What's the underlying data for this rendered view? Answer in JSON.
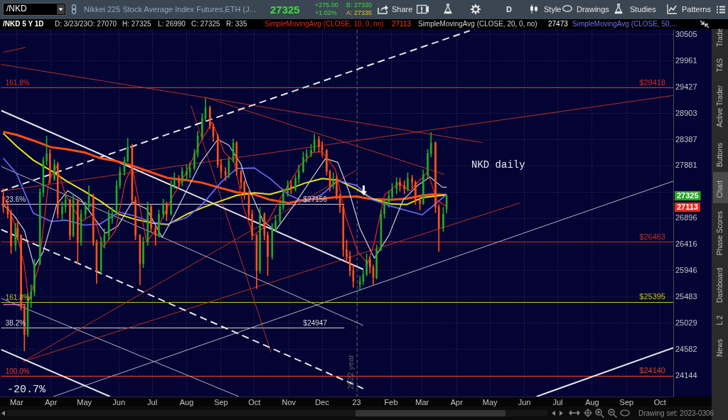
{
  "chart_data": {
    "type": "candlestick",
    "title": "Nikkei 225 Stock Average Index Futures,ETH (J...",
    "subtitle": "/NKD 5 Y 1D",
    "x": [
      "2022-02-17",
      "2022-02-21",
      "2022-02-24",
      "2022-02-28",
      "2022-03-02",
      "2022-03-05",
      "2022-03-08",
      "2022-03-11",
      "2022-03-14",
      "2022-03-17",
      "2022-03-22",
      "2022-03-25",
      "2022-03-28",
      "2022-03-31",
      "2022-04-04",
      "2022-04-07",
      "2022-04-11",
      "2022-04-14",
      "2022-04-18",
      "2022-04-21",
      "2022-04-25",
      "2022-04-28",
      "2022-05-02",
      "2022-05-05",
      "2022-05-09",
      "2022-05-12",
      "2022-05-16",
      "2022-05-19",
      "2022-05-23",
      "2022-05-26",
      "2022-05-30",
      "2022-06-02",
      "2022-06-06",
      "2022-06-09",
      "2022-06-13",
      "2022-06-16",
      "2022-06-20",
      "2022-06-23",
      "2022-06-27",
      "2022-06-30",
      "2022-07-04",
      "2022-07-07",
      "2022-07-11",
      "2022-07-14",
      "2022-07-18",
      "2022-07-21",
      "2022-07-25",
      "2022-07-28",
      "2022-08-01",
      "2022-08-04",
      "2022-08-08",
      "2022-08-11",
      "2022-08-15",
      "2022-08-18",
      "2022-08-22",
      "2022-08-25",
      "2022-08-29",
      "2022-09-01",
      "2022-09-05",
      "2022-09-08",
      "2022-09-12",
      "2022-09-15",
      "2022-09-19",
      "2022-09-22",
      "2022-09-26",
      "2022-09-29",
      "2022-10-03",
      "2022-10-06",
      "2022-10-10",
      "2022-10-13",
      "2022-10-17",
      "2022-10-20",
      "2022-10-24",
      "2022-10-27",
      "2022-10-31",
      "2022-11-03",
      "2022-11-07",
      "2022-11-10",
      "2022-11-14",
      "2022-11-17",
      "2022-11-21",
      "2022-11-24",
      "2022-11-28",
      "2022-12-01",
      "2022-12-05",
      "2022-12-08",
      "2022-12-11",
      "2022-12-14",
      "2022-12-17",
      "2022-12-20",
      "2022-12-23",
      "2022-12-26",
      "2022-12-29",
      "2023-01-04",
      "2023-01-07",
      "2023-01-10",
      "2023-01-13",
      "2023-01-16",
      "2023-01-19",
      "2023-01-23",
      "2023-01-26",
      "2023-01-30",
      "2023-02-02",
      "2023-02-06",
      "2023-02-09",
      "2023-02-13",
      "2023-02-16",
      "2023-02-20",
      "2023-02-23",
      "2023-02-27",
      "2023-03-02",
      "2023-03-06",
      "2023-03-09",
      "2023-03-13",
      "2023-03-16",
      "2023-03-20",
      "2023-03-23"
    ],
    "ohlc": [
      [
        27300,
        27450,
        27000,
        27106
      ],
      [
        27106,
        27200,
        26900,
        26974
      ],
      [
        26974,
        27050,
        26250,
        26391
      ],
      [
        26391,
        26800,
        26300,
        26713
      ],
      [
        26713,
        26850,
        26500,
        26584
      ],
      [
        26584,
        26600,
        25250,
        25322
      ],
      [
        25322,
        25350,
        24558,
        24834
      ],
      [
        24834,
        25550,
        24800,
        25446
      ],
      [
        25446,
        25700,
        25300,
        25570
      ],
      [
        25570,
        26150,
        25500,
        26072
      ],
      [
        26072,
        27450,
        26050,
        27371
      ],
      [
        27371,
        28050,
        27300,
        27976
      ],
      [
        27976,
        28456,
        27900,
        28112
      ],
      [
        28112,
        28200,
        27550,
        27638
      ],
      [
        27638,
        28000,
        27600,
        27908
      ],
      [
        27908,
        27950,
        26900,
        26974
      ],
      [
        26974,
        27200,
        26850,
        27106
      ],
      [
        27106,
        27350,
        27000,
        27237
      ],
      [
        27237,
        27250,
        26500,
        26584
      ],
      [
        26584,
        27350,
        26550,
        27237
      ],
      [
        27237,
        27250,
        26072,
        26455
      ],
      [
        26455,
        27050,
        26400,
        26974
      ],
      [
        26974,
        27200,
        26900,
        27106
      ],
      [
        27106,
        27505,
        27050,
        27304
      ],
      [
        27304,
        27350,
        26400,
        26455
      ],
      [
        26455,
        26500,
        25720,
        25946
      ],
      [
        25946,
        26550,
        25900,
        26455
      ],
      [
        26455,
        26700,
        26350,
        26584
      ],
      [
        26584,
        27050,
        26500,
        26974
      ],
      [
        26900,
        27100,
        26800,
        26974
      ],
      [
        26974,
        27600,
        26950,
        27505
      ],
      [
        27505,
        27850,
        27450,
        27773
      ],
      [
        27773,
        28050,
        27700,
        27976
      ],
      [
        27976,
        28414,
        27950,
        28250
      ],
      [
        28250,
        28300,
        27150,
        27237
      ],
      [
        27237,
        27300,
        26500,
        26584
      ],
      [
        26584,
        26600,
        25694,
        26072
      ],
      [
        26072,
        26550,
        26000,
        26455
      ],
      [
        26455,
        27200,
        26400,
        27106
      ],
      [
        27106,
        27150,
        26650,
        26713
      ],
      [
        26713,
        26750,
        26400,
        26584
      ],
      [
        26584,
        27050,
        26550,
        26974
      ],
      [
        26974,
        27250,
        26900,
        27171
      ],
      [
        27171,
        27200,
        26850,
        26974
      ],
      [
        26974,
        27600,
        26950,
        27505
      ],
      [
        27505,
        27750,
        27450,
        27638
      ],
      [
        27638,
        27700,
        27450,
        27571
      ],
      [
        27571,
        27850,
        27500,
        27773
      ],
      [
        27700,
        27900,
        27600,
        27773
      ],
      [
        27773,
        27950,
        27650,
        27840
      ],
      [
        27840,
        28200,
        27800,
        28112
      ],
      [
        28112,
        28550,
        28050,
        28456
      ],
      [
        28456,
        28900,
        28400,
        28803
      ],
      [
        28803,
        29200,
        28750,
        29014
      ],
      [
        29014,
        29050,
        28600,
        28664
      ],
      [
        28664,
        28700,
        28350,
        28456
      ],
      [
        28456,
        28500,
        27850,
        27908
      ],
      [
        27908,
        28000,
        27650,
        27773
      ],
      [
        27773,
        27850,
        27600,
        27705
      ],
      [
        27705,
        28050,
        27650,
        27976
      ],
      [
        27976,
        28400,
        27950,
        28319
      ],
      [
        28319,
        28350,
        27700,
        27773
      ],
      [
        27773,
        27800,
        27450,
        27571
      ],
      [
        27571,
        27600,
        27250,
        27371
      ],
      [
        27371,
        27400,
        26900,
        26974
      ],
      [
        26974,
        27050,
        26500,
        26584
      ],
      [
        26584,
        26600,
        25630,
        25946
      ],
      [
        25946,
        27100,
        25900,
        26974
      ],
      [
        26974,
        27000,
        26500,
        26584
      ],
      [
        26584,
        26650,
        25860,
        26200
      ],
      [
        26200,
        26800,
        26150,
        26713
      ],
      [
        26713,
        26950,
        26650,
        26844
      ],
      [
        26844,
        27200,
        26800,
        27106
      ],
      [
        27106,
        27450,
        27050,
        27371
      ],
      [
        27371,
        27600,
        27300,
        27505
      ],
      [
        27505,
        27600,
        27350,
        27438
      ],
      [
        27438,
        27700,
        27400,
        27638
      ],
      [
        27638,
        27900,
        27550,
        27773
      ],
      [
        27773,
        28150,
        27750,
        28044
      ],
      [
        28044,
        28200,
        27950,
        28112
      ],
      [
        28112,
        28300,
        28050,
        28181
      ],
      [
        28181,
        28497,
        28150,
        28387
      ],
      [
        28387,
        28450,
        28150,
        28250
      ],
      [
        28250,
        28350,
        28050,
        28181
      ],
      [
        28181,
        28200,
        27700,
        27773
      ],
      [
        27773,
        27800,
        27400,
        27505
      ],
      [
        27505,
        27750,
        27450,
        27638
      ],
      [
        27638,
        27700,
        27250,
        27304
      ],
      [
        27304,
        27350,
        27000,
        27106
      ],
      [
        27106,
        27150,
        26200,
        26327
      ],
      [
        26327,
        26500,
        26100,
        26200
      ],
      [
        26200,
        26300,
        25850,
        25946
      ],
      [
        25946,
        26050,
        25650,
        25756
      ],
      [
        25700,
        25850,
        25600,
        25756
      ],
      [
        25756,
        25950,
        25700,
        25882
      ],
      [
        25882,
        26250,
        25850,
        26136
      ],
      [
        26136,
        26200,
        25900,
        26009
      ],
      [
        26009,
        26050,
        25700,
        25819
      ],
      [
        25819,
        26400,
        25800,
        26327
      ],
      [
        26327,
        27050,
        26300,
        26974
      ],
      [
        26974,
        27250,
        26900,
        27171
      ],
      [
        27171,
        27400,
        27100,
        27304
      ],
      [
        27304,
        27550,
        27250,
        27438
      ],
      [
        27438,
        27650,
        27350,
        27571
      ],
      [
        27571,
        27650,
        27400,
        27505
      ],
      [
        27505,
        27600,
        27350,
        27438
      ],
      [
        27438,
        27750,
        27400,
        27638
      ],
      [
        27638,
        27700,
        27450,
        27571
      ],
      [
        27571,
        27600,
        27150,
        27237
      ],
      [
        27237,
        27300,
        27050,
        27171
      ],
      [
        27171,
        27800,
        27150,
        27705
      ],
      [
        27705,
        28200,
        27650,
        28112
      ],
      [
        28112,
        28527,
        28050,
        28319
      ],
      [
        28319,
        28350,
        27000,
        27106
      ],
      [
        27106,
        27150,
        26290,
        26713
      ],
      [
        26713,
        27100,
        26650,
        26974
      ],
      [
        27070,
        27325,
        26990,
        27325
      ]
    ],
    "colors": [
      "#ff5316",
      "#ff5316",
      "#ff5316",
      "#26a626",
      "#ff5316",
      "#ff5316",
      "#ff5316",
      "#26a626",
      "#26a626",
      "#26a626",
      "#26a626",
      "#26a626",
      "#26a626",
      "#ff5316",
      "#26a626",
      "#ff5316",
      "#26a626",
      "#26a626",
      "#ff5316",
      "#26a626",
      "#ff5316",
      "#26a626",
      "#26a626",
      "#26a626",
      "#ff5316",
      "#ff5316",
      "#26a626",
      "#26a626",
      "#26a626",
      "#26a626",
      "#26a626",
      "#26a626",
      "#26a626",
      "#26a626",
      "#ff5316",
      "#ff5316",
      "#ff5316",
      "#26a626",
      "#26a626",
      "#ff5316",
      "#ff5316",
      "#26a626",
      "#26a626",
      "#ff5316",
      "#26a626",
      "#26a626",
      "#ff5316",
      "#26a626",
      "#26a626",
      "#26a626",
      "#26a626",
      "#26a626",
      "#26a626",
      "#26a626",
      "#ff5316",
      "#ff5316",
      "#ff5316",
      "#ff5316",
      "#ff5316",
      "#26a626",
      "#26a626",
      "#ff5316",
      "#ff5316",
      "#ff5316",
      "#ff5316",
      "#ff5316",
      "#ff5316",
      "#26a626",
      "#ff5316",
      "#ff5316",
      "#26a626",
      "#26a626",
      "#26a626",
      "#26a626",
      "#26a626",
      "#ff5316",
      "#26a626",
      "#26a626",
      "#26a626",
      "#26a626",
      "#26a626",
      "#26a626",
      "#ff5316",
      "#ff5316",
      "#ff5316",
      "#ff5316",
      "#26a626",
      "#ff5316",
      "#ff5316",
      "#ff5316",
      "#ff5316",
      "#ff5316",
      "#ff5316",
      "#26a626",
      "#26a626",
      "#26a626",
      "#ff5316",
      "#ff5316",
      "#26a626",
      "#26a626",
      "#26a626",
      "#26a626",
      "#26a626",
      "#26a626",
      "#ff5316",
      "#ff5316",
      "#26a626",
      "#ff5316",
      "#ff5316",
      "#ff5316",
      "#26a626",
      "#26a626",
      "#26a626",
      "#ff5316",
      "#ff5316",
      "#26a626",
      "#26a626"
    ],
    "series": [
      {
        "type": "line",
        "name": "SimpleMovingAvg (CLOSE, 10, 0, no)",
        "color": "#e8281a",
        "x": [
          "2022-02-17",
          "2022-02-27",
          "2022-03-08",
          "2022-03-12",
          "2022-03-21",
          "2022-03-30",
          "2022-04-06",
          "2022-04-14",
          "2022-04-28",
          "2022-05-09",
          "2022-05-18",
          "2022-05-29",
          "2022-06-07",
          "2022-06-13",
          "2022-06-22",
          "2022-06-26",
          "2022-07-08",
          "2022-07-18",
          "2022-08-01",
          "2022-08-14",
          "2022-08-24",
          "2022-09-04",
          "2022-09-13",
          "2022-09-21",
          "2022-09-30",
          "2022-10-11",
          "2022-10-26",
          "2022-11-12",
          "2022-11-23",
          "2022-12-01",
          "2022-12-13",
          "2022-12-22",
          "2023-01-02",
          "2023-01-11",
          "2023-01-17",
          "2023-01-26",
          "2023-02-08",
          "2023-02-18",
          "2023-03-06",
          "2023-03-14",
          "2023-03-23"
        ],
        "values": [
          27330,
          26800,
          26030,
          25410,
          26030,
          27600,
          27870,
          27330,
          26840,
          26970,
          26370,
          26670,
          27600,
          27870,
          26880,
          26460,
          26800,
          27240,
          27770,
          28360,
          28730,
          28140,
          27950,
          27110,
          26580,
          26750,
          27330,
          27910,
          28140,
          28150,
          27810,
          26940,
          26290,
          26070,
          26460,
          27330,
          27550,
          27410,
          27770,
          27240,
          27113
        ]
      },
      {
        "type": "line",
        "name": "SimpleMovingAvg (CLOSE, 20, 0, no)",
        "color": "#d2d2d2",
        "x": [
          "2022-02-17",
          "2022-02-27",
          "2022-03-08",
          "2022-03-17",
          "2022-03-25",
          "2022-04-06",
          "2022-04-16",
          "2022-04-28",
          "2022-05-13",
          "2022-05-20",
          "2022-05-31",
          "2022-06-13",
          "2022-06-26",
          "2022-07-10",
          "2022-07-18",
          "2022-08-01",
          "2022-08-14",
          "2022-08-29",
          "2022-09-08",
          "2022-09-19",
          "2022-09-24",
          "2022-10-09",
          "2022-10-20",
          "2022-11-06",
          "2022-11-23",
          "2022-12-04",
          "2022-12-15",
          "2022-12-25",
          "2023-01-04",
          "2023-01-13",
          "2023-01-17",
          "2023-01-30",
          "2023-02-12",
          "2023-02-25",
          "2023-03-08",
          "2023-03-19",
          "2023-03-23"
        ],
        "values": [
          27150,
          26940,
          26670,
          26010,
          26290,
          27150,
          27410,
          27240,
          26810,
          26620,
          26750,
          27200,
          27070,
          26550,
          26840,
          27410,
          27950,
          28390,
          28280,
          27910,
          27550,
          26840,
          26670,
          27150,
          27680,
          28020,
          27950,
          27410,
          26710,
          26330,
          26170,
          26580,
          27240,
          27510,
          27670,
          27480,
          27473
        ]
      },
      {
        "type": "line",
        "name": "SimpleMovingAvg (CLOSE, 50,...",
        "color": "#6e6efc",
        "x": [
          "2022-02-17",
          "2022-03-01",
          "2022-03-16",
          "2022-04-01",
          "2022-04-15",
          "2022-05-01",
          "2022-05-15",
          "2022-06-01",
          "2022-06-15",
          "2022-07-01",
          "2022-07-15",
          "2022-08-01",
          "2022-08-15",
          "2022-09-01",
          "2022-09-15",
          "2022-10-01",
          "2022-10-15",
          "2022-11-01",
          "2022-11-15",
          "2022-12-01",
          "2022-12-15",
          "2023-01-01",
          "2023-01-15",
          "2023-02-01",
          "2023-02-15",
          "2023-03-01",
          "2023-03-10",
          "2023-03-23"
        ],
        "values": [
          28030,
          27730,
          26990,
          26840,
          26860,
          26770,
          26790,
          27010,
          26940,
          26820,
          26790,
          26910,
          27150,
          27570,
          27830,
          27840,
          27640,
          27330,
          27200,
          27340,
          27600,
          27510,
          27240,
          27120,
          27040,
          26960,
          27110,
          27340
        ]
      },
      {
        "type": "line",
        "color": "#e6e21e",
        "x": [
          "2022-02-17",
          "2022-03-01",
          "2022-03-16",
          "2022-04-01",
          "2022-04-15",
          "2022-05-01",
          "2022-05-15",
          "2022-06-01",
          "2022-06-15",
          "2022-07-01",
          "2022-07-15",
          "2022-08-01",
          "2022-08-15",
          "2022-09-01",
          "2022-09-15",
          "2022-10-01",
          "2022-10-15",
          "2022-11-01",
          "2022-11-15",
          "2022-12-01",
          "2022-12-15",
          "2023-01-01",
          "2023-01-15",
          "2023-02-01",
          "2023-02-15",
          "2023-03-01",
          "2023-03-10",
          "2023-03-23"
        ],
        "values": [
          28510,
          28260,
          27990,
          27790,
          27590,
          27400,
          27220,
          26970,
          26880,
          26810,
          26780,
          26970,
          27090,
          27220,
          27320,
          27370,
          27340,
          27440,
          27550,
          27640,
          27610,
          27440,
          27260,
          27160,
          27150,
          27280,
          27300,
          27330
        ]
      },
      {
        "type": "line",
        "color": "#ff4e14",
        "x": [
          "2022-02-17",
          "2022-03-01",
          "2022-03-16",
          "2022-04-01",
          "2022-04-15",
          "2022-05-01",
          "2022-05-15",
          "2022-06-01",
          "2022-06-15",
          "2022-07-01",
          "2022-07-15",
          "2022-08-01",
          "2022-08-15",
          "2022-09-01",
          "2022-09-15",
          "2022-10-01",
          "2022-10-15",
          "2022-11-01",
          "2022-11-15",
          "2022-12-01",
          "2022-12-15",
          "2023-01-01",
          "2023-01-15",
          "2023-02-01",
          "2023-02-15",
          "2023-03-01",
          "2023-03-10",
          "2023-03-23"
        ],
        "values": [
          28540,
          28480,
          28370,
          28240,
          28200,
          28140,
          28030,
          27960,
          27870,
          27750,
          27650,
          27610,
          27560,
          27460,
          27380,
          27340,
          27240,
          27180,
          27240,
          27260,
          27290,
          27300,
          27250,
          27240,
          27260,
          27320,
          27340,
          27330
        ]
      },
      {
        "type": "line",
        "color": "#e8e8e8",
        "line_style": "dashed",
        "x": [
          "2022-02-15",
          "2023-04-13"
        ],
        "values": [
          27398,
          30590
        ]
      },
      {
        "type": "line",
        "color": "#e8e8e8",
        "line_style": "dashed",
        "x": [
          "2022-02-15",
          "2023-01-07"
        ],
        "values": [
          26690,
          23930
        ]
      },
      {
        "type": "line",
        "color": "#e8e8e8",
        "x": [
          "2022-02-15",
          "2023-01-07"
        ],
        "values": [
          28960,
          25970
        ]
      },
      {
        "type": "line",
        "color": "#b4b4c4",
        "x": [
          "2022-02-15",
          "2023-01-07"
        ],
        "values": [
          27870,
          24990
        ]
      },
      {
        "type": "line",
        "color": "#b4b4c4",
        "x": [
          "2022-02-15",
          "2022-09-17"
        ],
        "values": [
          25460,
          23800
        ]
      },
      {
        "type": "line",
        "color": "#e8e8e8",
        "x": [
          "2022-02-15",
          "2022-05-24"
        ],
        "values": [
          24580,
          23800
        ]
      },
      {
        "type": "line",
        "color": "#b4b4c4",
        "x": [
          "2022-04-03",
          "2023-10-13"
        ],
        "values": [
          23800,
          27590
        ]
      },
      {
        "type": "line",
        "color": "#e8e8e8",
        "x": [
          "2023-06-12",
          "2023-10-13"
        ],
        "values": [
          23800,
          24610
        ]
      },
      {
        "type": "line",
        "color": "#b8321e",
        "x": [
          "2022-02-17",
          "2022-03-09"
        ],
        "values": [
          30140,
          30240
        ]
      },
      {
        "type": "line",
        "color": "#b8321e",
        "x": [
          "2022-02-15",
          "2023-04-24"
        ],
        "values": [
          29890,
          28330
        ]
      },
      {
        "type": "line",
        "color": "#b8321e",
        "x": [
          "2022-08-17",
          "2023-03-21"
        ],
        "values": [
          29230,
          27720
        ]
      },
      {
        "type": "line",
        "color": "#b8321e",
        "x": [
          "2022-02-15",
          "2023-10-13"
        ],
        "values": [
          27400,
          29260
        ]
      },
      {
        "type": "line",
        "color": "#b8321e",
        "x": [
          "2022-08-05",
          "2022-10-16"
        ],
        "values": [
          29060,
          24530
        ]
      },
      {
        "type": "line",
        "color": "#b8321e",
        "x": [
          "2022-03-07",
          "2023-01-01"
        ],
        "values": [
          24380,
          27800
        ]
      },
      {
        "type": "line",
        "color": "#b8321e",
        "x": [
          "2022-03-07",
          "2023-05-28"
        ],
        "values": [
          24380,
          27180
        ]
      },
      {
        "type": "line",
        "color": "#e060e0",
        "x": [
          "2022-02-17",
          "2022-03-09"
        ],
        "values": [
          25350,
          25350
        ]
      },
      {
        "type": "line",
        "color": "#d8d8d8",
        "x": [
          "2022-02-15",
          "2022-12-21"
        ],
        "values": [
          27156,
          27156
        ]
      },
      {
        "type": "line",
        "color": "#d8d8d8",
        "x": [
          "2022-02-15",
          "2022-12-21"
        ],
        "values": [
          24947,
          24947
        ]
      }
    ],
    "ref_lines": [
      {
        "axis": "y",
        "value": 29418,
        "label": "$29418",
        "color": "#d2341c"
      },
      {
        "axis": "y",
        "value": 26463,
        "label": "$26463",
        "color": "#c8301c"
      },
      {
        "axis": "y",
        "value": 25395,
        "label": "$25395",
        "color": "#c4c41a"
      },
      {
        "axis": "y",
        "value": 24140,
        "label": "$24140",
        "color": "#e8401a"
      },
      {
        "axis": "x",
        "value": "2023-01-01",
        "label": "2022 year",
        "color": "#5e5e5e",
        "line_style": "dashed"
      }
    ],
    "annotations": [
      "/NKD",
      "27325",
      "+275.00",
      "+1.02%",
      "B: 27330",
      "A: 27335",
      "Share",
      "D",
      "Style",
      "Drawings",
      "Studies",
      "Patterns",
      "D: 3/23/23",
      "O: 27070",
      "H: 27325",
      "L: 26990",
      "C: 27325",
      "R: 335",
      "27113",
      "27473",
      "Trade",
      "T&S",
      "Active Trader",
      "Buttons",
      "Chart",
      "Phase Scores",
      "Dashboard",
      "L 2",
      "News",
      "Drawing set: 2023-0306",
      "NKD daily",
      "-20.7%",
      {
        "text": "161.8%",
        "x": "2022-02-19",
        "y": 29418
      },
      {
        "text": "23.6%",
        "x": "2022-02-19",
        "y": 27156
      },
      {
        "text": "$27156",
        "x": "2022-11-14",
        "y": 27156
      },
      {
        "text": "161.8%",
        "x": "2022-02-19",
        "y": 25395
      },
      {
        "text": "38.2%",
        "x": "2022-02-19",
        "y": 24947
      },
      {
        "text": "$24947",
        "x": "2022-11-14",
        "y": 24947
      },
      {
        "text": "100.0%",
        "x": "2022-02-19",
        "y": 24140
      },
      {
        "text": "27325",
        "y": 27325
      },
      {
        "text": "27113",
        "y": 27113
      }
    ],
    "xlim": [
      "2022-02-15",
      "2023-10-13"
    ],
    "xticks": [
      {
        "value": "2022-03-01",
        "label": "Mar"
      },
      {
        "value": "2022-04-01",
        "label": "Apr"
      },
      {
        "value": "2022-05-01",
        "label": "May"
      },
      {
        "value": "2022-06-01",
        "label": "Jun"
      },
      {
        "value": "2022-07-01",
        "label": "Jul"
      },
      {
        "value": "2022-08-01",
        "label": "Aug"
      },
      {
        "value": "2022-09-01",
        "label": "Sep"
      },
      {
        "value": "2022-10-01",
        "label": "Oct"
      },
      {
        "value": "2022-11-01",
        "label": "Nov"
      },
      {
        "value": "2022-12-01",
        "label": "Dec"
      },
      {
        "value": "2023-01-01",
        "label": "23"
      },
      {
        "value": "2023-02-01",
        "label": "Feb"
      },
      {
        "value": "2023-03-01",
        "label": "Mar"
      },
      {
        "value": "2023-04-01",
        "label": "Apr"
      },
      {
        "value": "2023-05-01",
        "label": "May"
      },
      {
        "value": "2023-06-01",
        "label": "Jun"
      },
      {
        "value": "2023-07-01",
        "label": "Jul"
      },
      {
        "value": "2023-08-01",
        "label": "Aug"
      },
      {
        "value": "2023-09-01",
        "label": "Sep"
      },
      {
        "value": "2023-10-01",
        "label": "Oct"
      }
    ],
    "ylim": [
      23800,
      30600
    ],
    "yticks": [
      30505,
      29961,
      29427,
      28903,
      28387,
      27881,
      {
        "value": 27384,
        "label": null
      },
      26896,
      26416,
      25946,
      25483,
      25029,
      24582,
      24144
    ],
    "log": true,
    "grid": true,
    "legend": "top"
  }
}
